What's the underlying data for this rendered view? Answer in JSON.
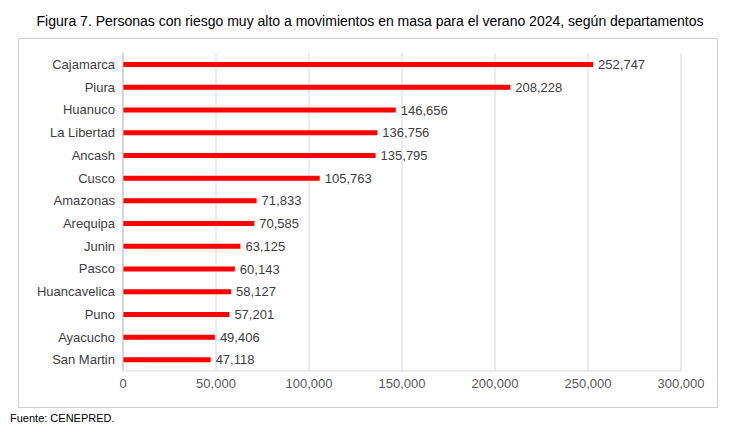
{
  "chart_data": {
    "type": "bar",
    "orientation": "horizontal",
    "title": "Figura 7. Personas con riesgo muy alto a movimientos en masa para el verano 2024, según departamentos",
    "source": "Fuente: CENEPRED.",
    "categories": [
      "Cajamarca",
      "Piura",
      "Huanuco",
      "La Libertad",
      "Ancash",
      "Cusco",
      "Amazonas",
      "Arequipa",
      "Junin",
      "Pasco",
      "Huancavelica",
      "Puno",
      "Ayacucho",
      "San Martin"
    ],
    "values": [
      252747,
      208228,
      146656,
      136756,
      135795,
      105763,
      71833,
      70585,
      63125,
      60143,
      58127,
      57201,
      49406,
      47118
    ],
    "value_labels": [
      "252,747",
      "208,228",
      "146,656",
      "136,756",
      "135,795",
      "105,763",
      "71,833",
      "70,585",
      "63,125",
      "60,143",
      "58,127",
      "57,201",
      "49,406",
      "47,118"
    ],
    "color": "#ff0000",
    "xlim": [
      0,
      300000
    ],
    "xticks": [
      0,
      {
        "value": 50000,
        "label": "50,000"
      },
      {
        "value": 100000,
        "label": "100,000"
      },
      {
        "value": 150000,
        "label": "150,000"
      },
      {
        "value": 200000,
        "label": "200,000"
      },
      {
        "value": 250000,
        "label": "250,000"
      },
      {
        "value": 300000,
        "label": "300,000"
      }
    ],
    "grid": true,
    "data_labels": true
  }
}
